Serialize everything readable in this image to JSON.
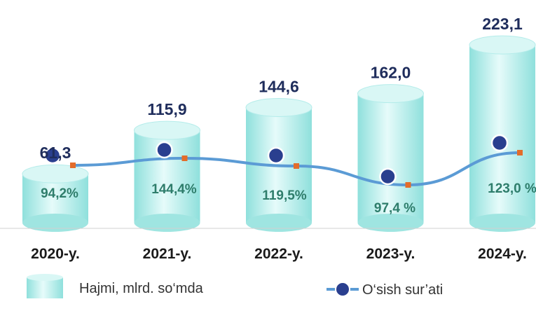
{
  "chart_data": {
    "type": "bar",
    "categories": [
      "2020-y.",
      "2021-y.",
      "2022-y.",
      "2023-y.",
      "2024-y."
    ],
    "series": [
      {
        "name": "Hajmi, mlrd. so‘mda",
        "kind": "cylinder-bar",
        "values": [
          61.3,
          115.9,
          144.6,
          162.0,
          223.1
        ],
        "labels": [
          "61,3",
          "115,9",
          "144,6",
          "162,0",
          "223,1"
        ]
      },
      {
        "name": "O‘sish sur’ati",
        "kind": "line",
        "values": [
          94.2,
          144.4,
          119.5,
          97.4,
          123.0
        ],
        "labels": [
          "94,2%",
          "144,4%",
          "119,5%",
          "97,4 %",
          "123,0 %"
        ]
      }
    ],
    "legend_position": "bottom",
    "grid": false
  },
  "colors": {
    "bar_fill": "#bff0ee",
    "bar_top": "#d9f7f5",
    "line": "#5b9bd5",
    "marker": "#2a3f8f",
    "square_marker": "#e36c2a",
    "value_text": "#1f2d5c",
    "rate_text": "#2e7d6b"
  }
}
